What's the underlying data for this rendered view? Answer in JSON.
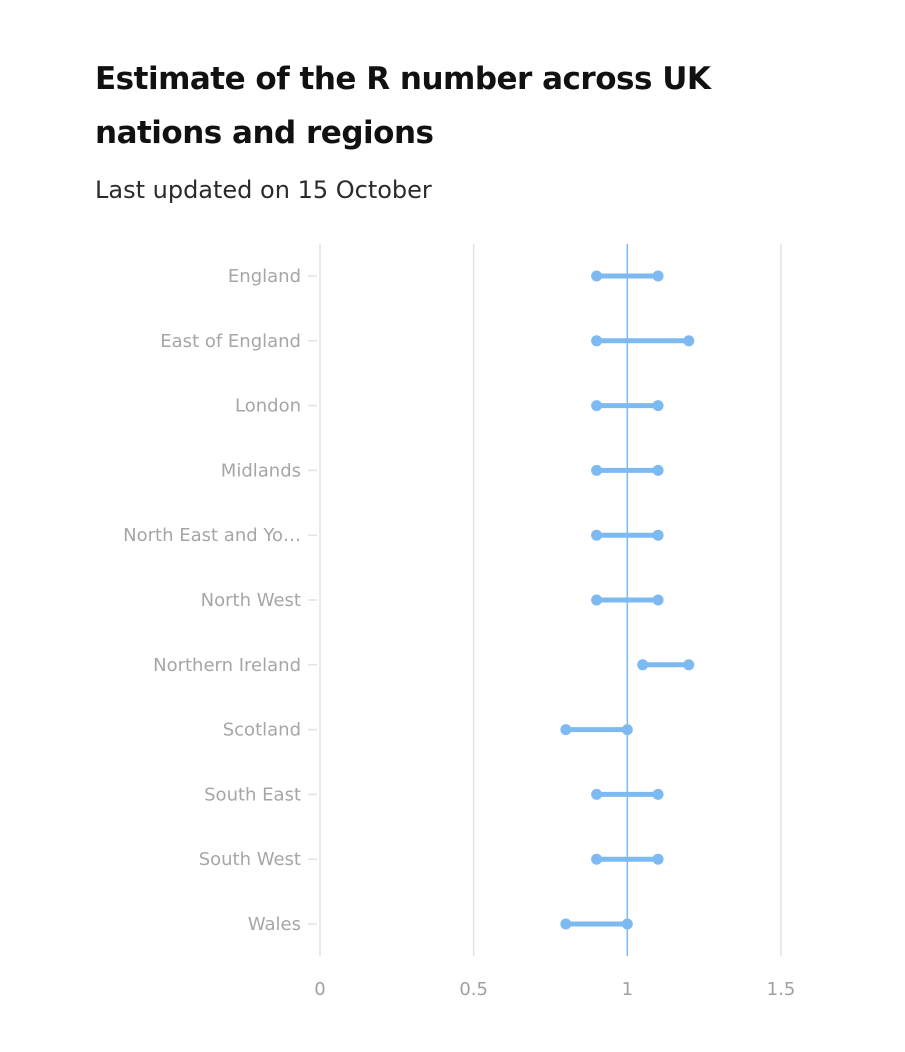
{
  "chart_data": {
    "type": "dumbbell",
    "title": "Estimate of the R number across UK nations and regions",
    "subtitle": "Last updated on 15 October",
    "xlabel": "",
    "ylabel": "",
    "xlim": [
      0,
      1.5
    ],
    "xticks": [
      0,
      0.5,
      1,
      1.5
    ],
    "xtick_labels": [
      "0",
      "0.5",
      "1",
      "1.5"
    ],
    "reference_line": 1,
    "categories": [
      "England",
      "East of England",
      "London",
      "Midlands",
      "North East and Yo…",
      "North West",
      "Northern Ireland",
      "Scotland",
      "South East",
      "South West",
      "Wales"
    ],
    "low": [
      0.9,
      0.9,
      0.9,
      0.9,
      0.9,
      0.9,
      1.05,
      0.8,
      0.9,
      0.9,
      0.8
    ],
    "high": [
      1.1,
      1.2,
      1.1,
      1.1,
      1.1,
      1.1,
      1.2,
      1.0,
      1.1,
      1.1,
      1.0
    ],
    "colors": {
      "range": "#7dbaf2",
      "reference": "#7dbaf2",
      "grid": "#e3e3e3"
    }
  }
}
